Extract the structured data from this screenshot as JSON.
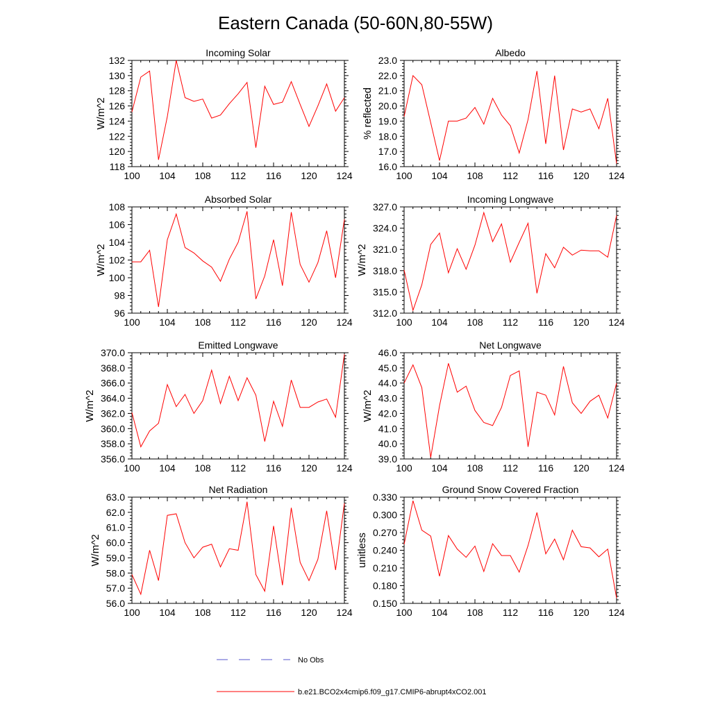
{
  "figure": {
    "title": "Eastern Canada (50-60N,80-55W)",
    "colors": {
      "model": "#ff0000",
      "obs": "#5555cc",
      "axis": "#000000"
    }
  },
  "legend": [
    {
      "label": "No Obs",
      "style": "dashed",
      "color": "#5555cc"
    },
    {
      "label": "b.e21.BCO2x4cmip6.f09_g17.CMIP6-abrupt4xCO2.001",
      "style": "solid",
      "color": "#ff0000"
    }
  ],
  "chart_data": [
    {
      "type": "line",
      "title": "Incoming Solar",
      "ylabel": "W/m^2",
      "xlim": [
        100,
        124
      ],
      "xticks": [
        100,
        104,
        108,
        112,
        116,
        120,
        124
      ],
      "ylim": [
        118,
        132
      ],
      "yticks": [
        118,
        120,
        122,
        124,
        126,
        128,
        130,
        132
      ],
      "ydecimals": 0,
      "x": [
        100,
        101,
        102,
        103,
        104,
        105,
        106,
        107,
        108,
        109,
        110,
        111,
        112,
        113,
        114,
        115,
        116,
        117,
        118,
        119,
        120,
        121,
        122,
        123,
        124
      ],
      "series": [
        {
          "name": "b.e21.BCO2x4cmip6.f09_g17.CMIP6-abrupt4xCO2.001",
          "values": [
            125.2,
            129.8,
            130.6,
            118.9,
            124.6,
            132.0,
            127.1,
            126.6,
            126.9,
            124.4,
            124.8,
            126.3,
            127.6,
            129.1,
            120.5,
            128.6,
            126.2,
            126.5,
            129.2,
            126.2,
            123.3,
            126.0,
            128.9,
            125.3,
            127.1
          ]
        }
      ]
    },
    {
      "type": "line",
      "title": "Albedo",
      "ylabel": "% reflected",
      "xlim": [
        100,
        124
      ],
      "xticks": [
        100,
        104,
        108,
        112,
        116,
        120,
        124
      ],
      "ylim": [
        16,
        23
      ],
      "yticks": [
        16,
        17,
        18,
        19,
        20,
        21,
        22,
        23
      ],
      "ydecimals": 1,
      "x": [
        100,
        101,
        102,
        103,
        104,
        105,
        106,
        107,
        108,
        109,
        110,
        111,
        112,
        113,
        114,
        115,
        116,
        117,
        118,
        119,
        120,
        121,
        122,
        123,
        124
      ],
      "series": [
        {
          "name": "b.e21.BCO2x4cmip6.f09_g17.CMIP6-abrupt4xCO2.001",
          "values": [
            19.3,
            22.0,
            21.4,
            18.9,
            16.4,
            19.0,
            19.0,
            19.2,
            19.9,
            18.8,
            20.5,
            19.4,
            18.7,
            16.9,
            19.1,
            22.3,
            17.5,
            22.0,
            17.1,
            19.8,
            19.6,
            19.8,
            18.5,
            20.5,
            16.2
          ]
        }
      ]
    },
    {
      "type": "line",
      "title": "Absorbed Solar",
      "ylabel": "W/m^2",
      "xlim": [
        100,
        124
      ],
      "xticks": [
        100,
        104,
        108,
        112,
        116,
        120,
        124
      ],
      "ylim": [
        96,
        108
      ],
      "yticks": [
        96,
        98,
        100,
        102,
        104,
        106,
        108
      ],
      "ydecimals": 0,
      "x": [
        100,
        101,
        102,
        103,
        104,
        105,
        106,
        107,
        108,
        109,
        110,
        111,
        112,
        113,
        114,
        115,
        116,
        117,
        118,
        119,
        120,
        121,
        122,
        123,
        124
      ],
      "series": [
        {
          "name": "b.e21.BCO2x4cmip6.f09_g17.CMIP6-abrupt4xCO2.001",
          "values": [
            101.8,
            101.8,
            103.1,
            96.7,
            104.3,
            107.2,
            103.4,
            102.8,
            101.9,
            101.2,
            99.6,
            102.1,
            104.0,
            107.5,
            97.6,
            100.2,
            104.3,
            99.1,
            107.4,
            101.5,
            99.5,
            101.7,
            105.3,
            100.0,
            106.6
          ]
        }
      ]
    },
    {
      "type": "line",
      "title": "Incoming Longwave",
      "ylabel": "W/m^2",
      "xlim": [
        100,
        124
      ],
      "xticks": [
        100,
        104,
        108,
        112,
        116,
        120,
        124
      ],
      "ylim": [
        312,
        327
      ],
      "yticks": [
        312,
        315,
        318,
        321,
        324,
        327
      ],
      "ydecimals": 1,
      "x": [
        100,
        101,
        102,
        103,
        104,
        105,
        106,
        107,
        108,
        109,
        110,
        111,
        112,
        113,
        114,
        115,
        116,
        117,
        118,
        119,
        120,
        121,
        122,
        123,
        124
      ],
      "series": [
        {
          "name": "b.e21.BCO2x4cmip6.f09_g17.CMIP6-abrupt4xCO2.001",
          "values": [
            318.1,
            312.4,
            316.0,
            321.7,
            323.3,
            317.7,
            321.1,
            318.2,
            321.6,
            326.2,
            322.1,
            324.6,
            319.2,
            322.0,
            324.7,
            314.8,
            320.4,
            318.4,
            321.3,
            320.2,
            320.9,
            320.8,
            320.8,
            319.9,
            325.8
          ]
        }
      ]
    },
    {
      "type": "line",
      "title": "Emitted Longwave",
      "ylabel": "W/m^2",
      "xlim": [
        100,
        124
      ],
      "xticks": [
        100,
        104,
        108,
        112,
        116,
        120,
        124
      ],
      "ylim": [
        356,
        370
      ],
      "yticks": [
        356,
        358,
        360,
        362,
        364,
        366,
        368,
        370
      ],
      "ydecimals": 1,
      "x": [
        100,
        101,
        102,
        103,
        104,
        105,
        106,
        107,
        108,
        109,
        110,
        111,
        112,
        113,
        114,
        115,
        116,
        117,
        118,
        119,
        120,
        121,
        122,
        123,
        124
      ],
      "series": [
        {
          "name": "b.e21.BCO2x4cmip6.f09_g17.CMIP6-abrupt4xCO2.001",
          "values": [
            362.1,
            357.6,
            359.7,
            360.7,
            365.8,
            362.9,
            364.5,
            362.0,
            363.7,
            367.7,
            363.3,
            366.9,
            363.7,
            366.7,
            364.4,
            358.3,
            363.6,
            360.3,
            366.4,
            362.8,
            362.8,
            363.5,
            363.9,
            361.5,
            369.8
          ]
        }
      ]
    },
    {
      "type": "line",
      "title": "Net Longwave",
      "ylabel": "W/m^2",
      "xlim": [
        100,
        124
      ],
      "xticks": [
        100,
        104,
        108,
        112,
        116,
        120,
        124
      ],
      "ylim": [
        39,
        46
      ],
      "yticks": [
        39,
        40,
        41,
        42,
        43,
        44,
        45,
        46
      ],
      "ydecimals": 1,
      "x": [
        100,
        101,
        102,
        103,
        104,
        105,
        106,
        107,
        108,
        109,
        110,
        111,
        112,
        113,
        114,
        115,
        116,
        117,
        118,
        119,
        120,
        121,
        122,
        123,
        124
      ],
      "series": [
        {
          "name": "b.e21.BCO2x4cmip6.f09_g17.CMIP6-abrupt4xCO2.001",
          "values": [
            44.0,
            45.2,
            43.7,
            39.1,
            42.5,
            45.3,
            43.4,
            43.8,
            42.2,
            41.4,
            41.2,
            42.4,
            44.5,
            44.8,
            39.8,
            43.4,
            43.2,
            41.9,
            45.1,
            42.7,
            42.0,
            42.8,
            43.2,
            41.7,
            44.0
          ]
        }
      ]
    },
    {
      "type": "line",
      "title": "Net Radiation",
      "ylabel": "W/m^2",
      "xlim": [
        100,
        124
      ],
      "xticks": [
        100,
        104,
        108,
        112,
        116,
        120,
        124
      ],
      "ylim": [
        56,
        63
      ],
      "yticks": [
        56,
        57,
        58,
        59,
        60,
        61,
        62,
        63
      ],
      "ydecimals": 1,
      "x": [
        100,
        101,
        102,
        103,
        104,
        105,
        106,
        107,
        108,
        109,
        110,
        111,
        112,
        113,
        114,
        115,
        116,
        117,
        118,
        119,
        120,
        121,
        122,
        123,
        124
      ],
      "series": [
        {
          "name": "b.e21.BCO2x4cmip6.f09_g17.CMIP6-abrupt4xCO2.001",
          "values": [
            57.9,
            56.6,
            59.5,
            57.5,
            61.8,
            61.9,
            60.0,
            59.0,
            59.7,
            59.9,
            58.4,
            59.6,
            59.5,
            62.7,
            57.9,
            56.8,
            61.1,
            57.2,
            62.3,
            58.7,
            57.5,
            58.9,
            62.1,
            58.2,
            62.6
          ]
        }
      ]
    },
    {
      "type": "line",
      "title": "Ground Snow Covered Fraction",
      "ylabel": "unitless",
      "xlim": [
        100,
        124
      ],
      "xticks": [
        100,
        104,
        108,
        112,
        116,
        120,
        124
      ],
      "ylim": [
        0.15,
        0.33
      ],
      "yticks": [
        0.15,
        0.18,
        0.21,
        0.24,
        0.27,
        0.3,
        0.33
      ],
      "ydecimals": 3,
      "x": [
        100,
        101,
        102,
        103,
        104,
        105,
        106,
        107,
        108,
        109,
        110,
        111,
        112,
        113,
        114,
        115,
        116,
        117,
        118,
        119,
        120,
        121,
        122,
        123,
        124
      ],
      "series": [
        {
          "name": "b.e21.BCO2x4cmip6.f09_g17.CMIP6-abrupt4xCO2.001",
          "values": [
            0.25,
            0.324,
            0.274,
            0.264,
            0.196,
            0.265,
            0.242,
            0.228,
            0.247,
            0.204,
            0.251,
            0.231,
            0.231,
            0.203,
            0.248,
            0.304,
            0.234,
            0.259,
            0.224,
            0.274,
            0.246,
            0.244,
            0.229,
            0.242,
            0.159
          ]
        }
      ]
    }
  ]
}
